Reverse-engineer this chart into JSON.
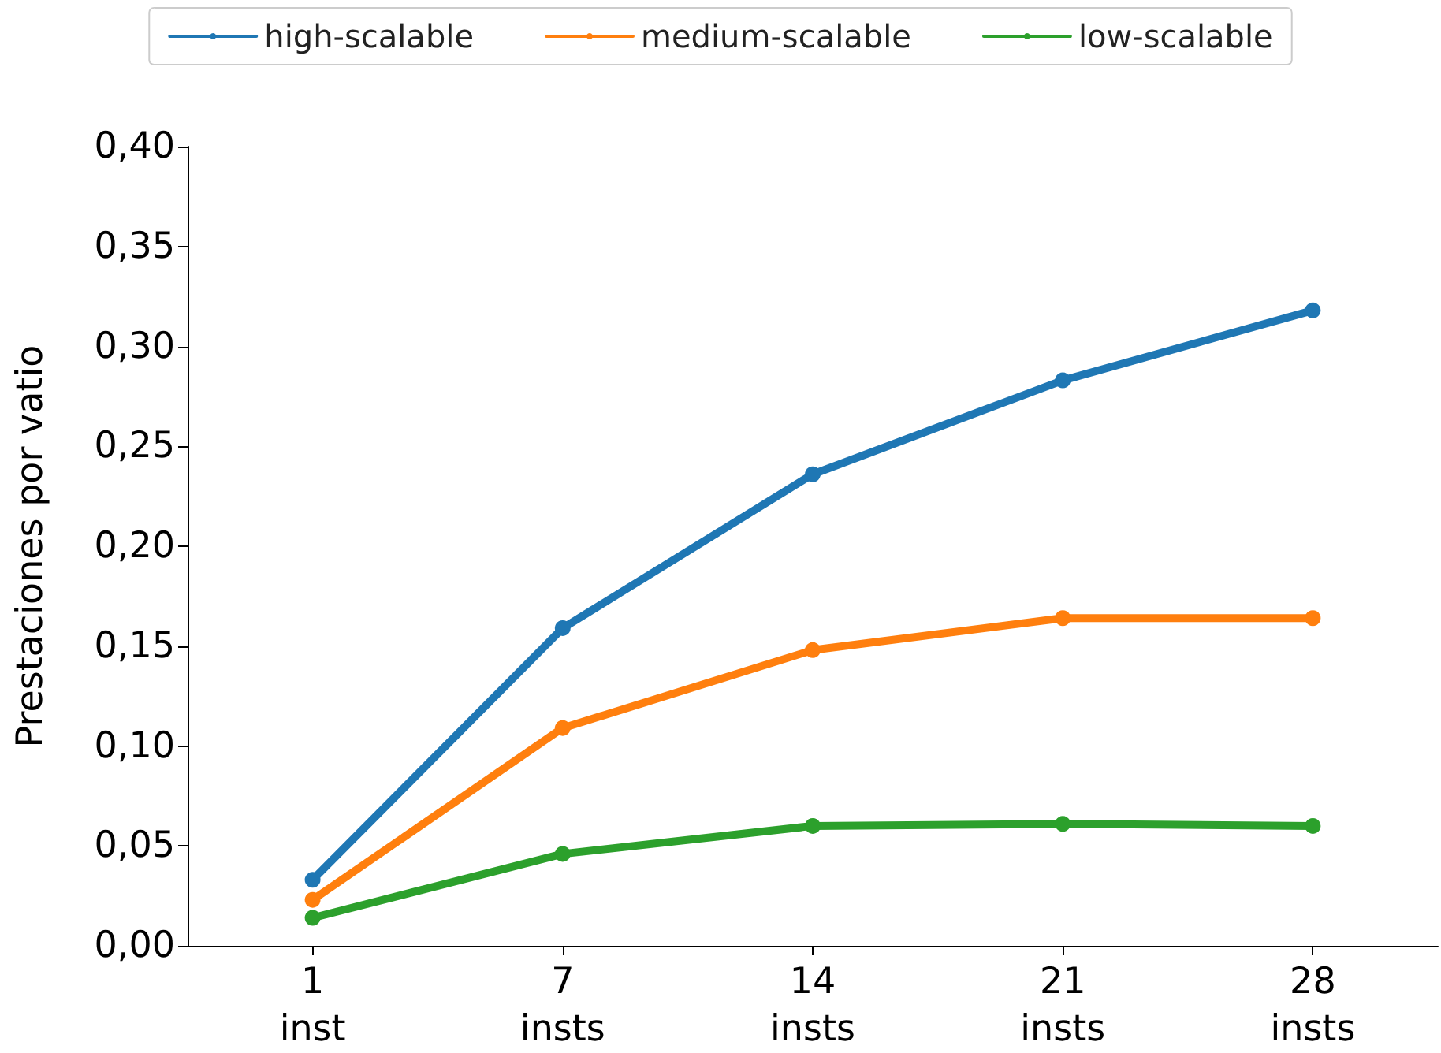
{
  "chart_data": {
    "type": "line",
    "ylabel": "Prestaciones por vatio",
    "categories": [
      "1\ninst",
      "7\ninsts",
      "14\ninsts",
      "21\ninsts",
      "28\ninsts"
    ],
    "series": [
      {
        "name": "high-scalable",
        "color": "#1f77b4",
        "values": [
          0.033,
          0.159,
          0.236,
          0.283,
          0.318
        ]
      },
      {
        "name": "medium-scalable",
        "color": "#ff7f0e",
        "values": [
          0.023,
          0.109,
          0.148,
          0.164,
          0.164
        ]
      },
      {
        "name": "low-scalable",
        "color": "#2ca02c",
        "values": [
          0.014,
          0.046,
          0.06,
          0.061,
          0.06
        ]
      }
    ],
    "ylim": [
      0,
      0.4
    ],
    "yticks": [
      {
        "value": 0,
        "label": "0,00"
      },
      {
        "value": 0.05,
        "label": "0,05"
      },
      {
        "value": 0.1,
        "label": "0,10"
      },
      {
        "value": 0.15,
        "label": "0,15"
      },
      {
        "value": 0.2,
        "label": "0,20"
      },
      {
        "value": 0.25,
        "label": "0,25"
      },
      {
        "value": 0.3,
        "label": "0,30"
      },
      {
        "value": 0.35,
        "label": "0,35"
      },
      {
        "value": 0.4,
        "label": "0,40"
      }
    ],
    "grid": false,
    "legend": "top",
    "marker": "circle",
    "line_style": "solid"
  }
}
